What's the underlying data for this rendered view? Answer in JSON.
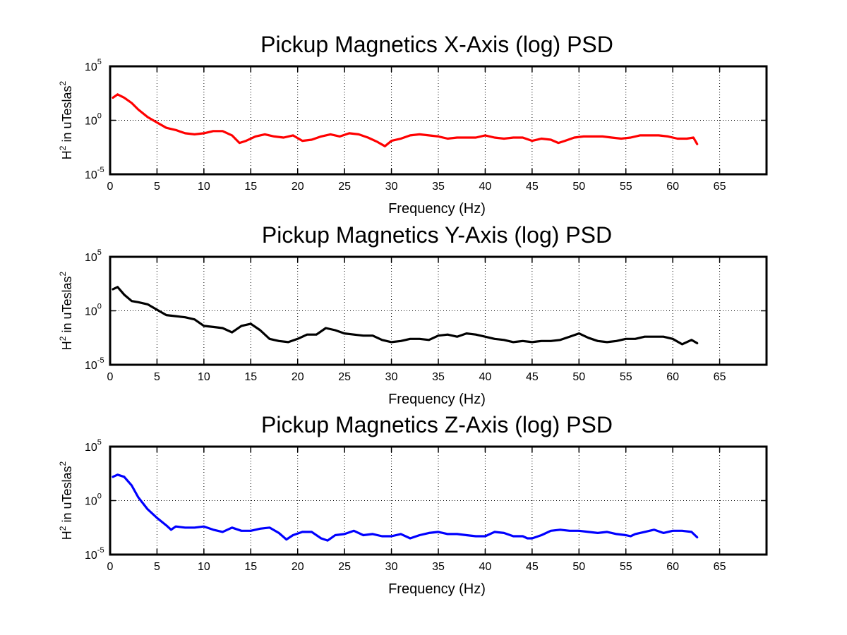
{
  "chart_data": [
    {
      "type": "line",
      "title": "Pickup Magnetics X-Axis (log) PSD",
      "xlabel": "Frequency (Hz)",
      "ylabel": "H² in uTeslas²",
      "ylabel_parts": [
        "H",
        "2",
        " in uTeslas",
        "2"
      ],
      "xlim": [
        0,
        70
      ],
      "xticks": [
        "0",
        "5",
        "10",
        "15",
        "20",
        "25",
        "30",
        "35",
        "40",
        "45",
        "50",
        "55",
        "60",
        "65"
      ],
      "ylim_log10": [
        -5,
        5
      ],
      "y_scale": "log",
      "ytick_exponents": [
        "5",
        "0",
        "-5"
      ],
      "grid": true,
      "color": "#ff0000",
      "series": [
        {
          "x": [
            0.3,
            0.8,
            1.5,
            2.3,
            3,
            4,
            5,
            6,
            7,
            8,
            9,
            10,
            11,
            12,
            13,
            13.8,
            14.5,
            15.5,
            16.5,
            17.5,
            18.5,
            19.5,
            20.5,
            21.5,
            22.5,
            23.5,
            24.5,
            25.5,
            26.5,
            27.5,
            28.5,
            29.3,
            30,
            31,
            32,
            33,
            34,
            35,
            36,
            37,
            38,
            39,
            40,
            41,
            42,
            43,
            44,
            45,
            46,
            47,
            47.8,
            48.5,
            49.5,
            50.5,
            51.5,
            52.5,
            53.5,
            54.5,
            55.5,
            56.5,
            57.5,
            58.5,
            59.5,
            60.5,
            61.5,
            62.2,
            62.6
          ],
          "log10_psd": [
            2.1,
            2.4,
            2.1,
            1.6,
            1.0,
            0.3,
            -0.2,
            -0.7,
            -0.9,
            -1.2,
            -1.3,
            -1.2,
            -1.0,
            -1.0,
            -1.4,
            -2.1,
            -1.9,
            -1.5,
            -1.3,
            -1.5,
            -1.6,
            -1.4,
            -1.9,
            -1.8,
            -1.5,
            -1.3,
            -1.5,
            -1.2,
            -1.3,
            -1.6,
            -2.0,
            -2.4,
            -1.9,
            -1.7,
            -1.4,
            -1.3,
            -1.4,
            -1.5,
            -1.7,
            -1.6,
            -1.6,
            -1.6,
            -1.4,
            -1.6,
            -1.7,
            -1.6,
            -1.6,
            -1.9,
            -1.7,
            -1.8,
            -2.1,
            -1.9,
            -1.6,
            -1.5,
            -1.5,
            -1.5,
            -1.6,
            -1.7,
            -1.6,
            -1.4,
            -1.4,
            -1.4,
            -1.5,
            -1.7,
            -1.7,
            -1.6,
            -2.2
          ]
        }
      ]
    },
    {
      "type": "line",
      "title": "Pickup Magnetics Y-Axis (log) PSD",
      "xlabel": "Frequency (Hz)",
      "ylabel": "H² in uTeslas²",
      "ylabel_parts": [
        "H",
        "2",
        " in uTeslas",
        "2"
      ],
      "xlim": [
        0,
        70
      ],
      "xticks": [
        "0",
        "5",
        "10",
        "15",
        "20",
        "25",
        "30",
        "35",
        "40",
        "45",
        "50",
        "55",
        "60",
        "65"
      ],
      "ylim_log10": [
        -5,
        5
      ],
      "y_scale": "log",
      "ytick_exponents": [
        "5",
        "0",
        "-5"
      ],
      "grid": true,
      "color": "#000000",
      "series": [
        {
          "x": [
            0.3,
            0.8,
            1.5,
            2.3,
            3,
            4,
            5,
            6,
            7,
            8,
            9,
            10,
            11,
            12,
            13,
            14,
            15,
            16,
            17,
            18,
            19,
            20,
            21,
            22,
            23,
            24,
            25,
            26,
            27,
            28,
            29,
            30,
            31,
            32,
            33,
            34,
            35,
            36,
            37,
            38,
            39,
            40,
            41,
            42,
            43,
            44,
            45,
            46,
            47,
            48,
            49,
            50,
            51,
            52,
            53,
            54,
            55,
            56,
            57,
            58,
            59,
            60,
            61,
            62,
            62.6
          ],
          "log10_psd": [
            2.0,
            2.2,
            1.5,
            0.9,
            0.8,
            0.6,
            0.1,
            -0.4,
            -0.5,
            -0.6,
            -0.8,
            -1.4,
            -1.5,
            -1.6,
            -2.0,
            -1.4,
            -1.2,
            -1.8,
            -2.6,
            -2.8,
            -2.9,
            -2.6,
            -2.2,
            -2.2,
            -1.6,
            -1.8,
            -2.1,
            -2.2,
            -2.3,
            -2.3,
            -2.7,
            -2.9,
            -2.8,
            -2.6,
            -2.6,
            -2.7,
            -2.3,
            -2.2,
            -2.4,
            -2.1,
            -2.2,
            -2.4,
            -2.6,
            -2.7,
            -2.9,
            -2.8,
            -2.9,
            -2.8,
            -2.8,
            -2.7,
            -2.4,
            -2.1,
            -2.5,
            -2.8,
            -2.9,
            -2.8,
            -2.6,
            -2.6,
            -2.4,
            -2.4,
            -2.4,
            -2.6,
            -3.1,
            -2.7,
            -3.0
          ]
        }
      ]
    },
    {
      "type": "line",
      "title": "Pickup Magnetics Z-Axis (log) PSD",
      "xlabel": "Frequency (Hz)",
      "ylabel": "H² in uTeslas²",
      "ylabel_parts": [
        "H",
        "2",
        " in uTeslas",
        "2"
      ],
      "xlim": [
        0,
        70
      ],
      "xticks": [
        "0",
        "5",
        "10",
        "15",
        "20",
        "25",
        "30",
        "35",
        "40",
        "45",
        "50",
        "55",
        "60",
        "65"
      ],
      "ylim_log10": [
        -5,
        5
      ],
      "y_scale": "log",
      "ytick_exponents": [
        "5",
        "0",
        "-5"
      ],
      "grid": true,
      "color": "#0000ff",
      "series": [
        {
          "x": [
            0.3,
            0.8,
            1.5,
            2.3,
            3,
            4,
            5,
            6,
            6.5,
            7,
            8,
            9,
            10,
            11,
            12,
            13,
            14,
            15,
            16,
            17,
            18,
            18.8,
            19.5,
            20.5,
            21.5,
            22.5,
            23.2,
            24,
            25,
            26,
            27,
            28,
            29,
            30,
            31,
            32,
            33,
            34,
            35,
            36,
            37,
            38,
            39,
            40,
            41,
            42,
            43,
            44,
            44.5,
            45,
            46,
            47,
            48,
            49,
            50,
            51,
            52,
            53,
            54,
            55,
            55.5,
            56,
            57,
            58,
            59,
            60,
            61,
            62,
            62.6
          ],
          "log10_psd": [
            2.2,
            2.4,
            2.2,
            1.4,
            0.3,
            -0.8,
            -1.6,
            -2.3,
            -2.7,
            -2.4,
            -2.5,
            -2.5,
            -2.4,
            -2.7,
            -2.9,
            -2.5,
            -2.8,
            -2.8,
            -2.6,
            -2.5,
            -3.0,
            -3.6,
            -3.2,
            -2.9,
            -2.9,
            -3.5,
            -3.7,
            -3.2,
            -3.1,
            -2.8,
            -3.2,
            -3.1,
            -3.3,
            -3.3,
            -3.1,
            -3.5,
            -3.2,
            -3.0,
            -2.9,
            -3.1,
            -3.1,
            -3.2,
            -3.3,
            -3.3,
            -2.9,
            -3.0,
            -3.3,
            -3.3,
            -3.5,
            -3.5,
            -3.2,
            -2.8,
            -2.7,
            -2.8,
            -2.8,
            -2.9,
            -3.0,
            -2.9,
            -3.1,
            -3.2,
            -3.3,
            -3.1,
            -2.9,
            -2.7,
            -3.0,
            -2.8,
            -2.8,
            -2.9,
            -3.4
          ]
        }
      ]
    }
  ]
}
